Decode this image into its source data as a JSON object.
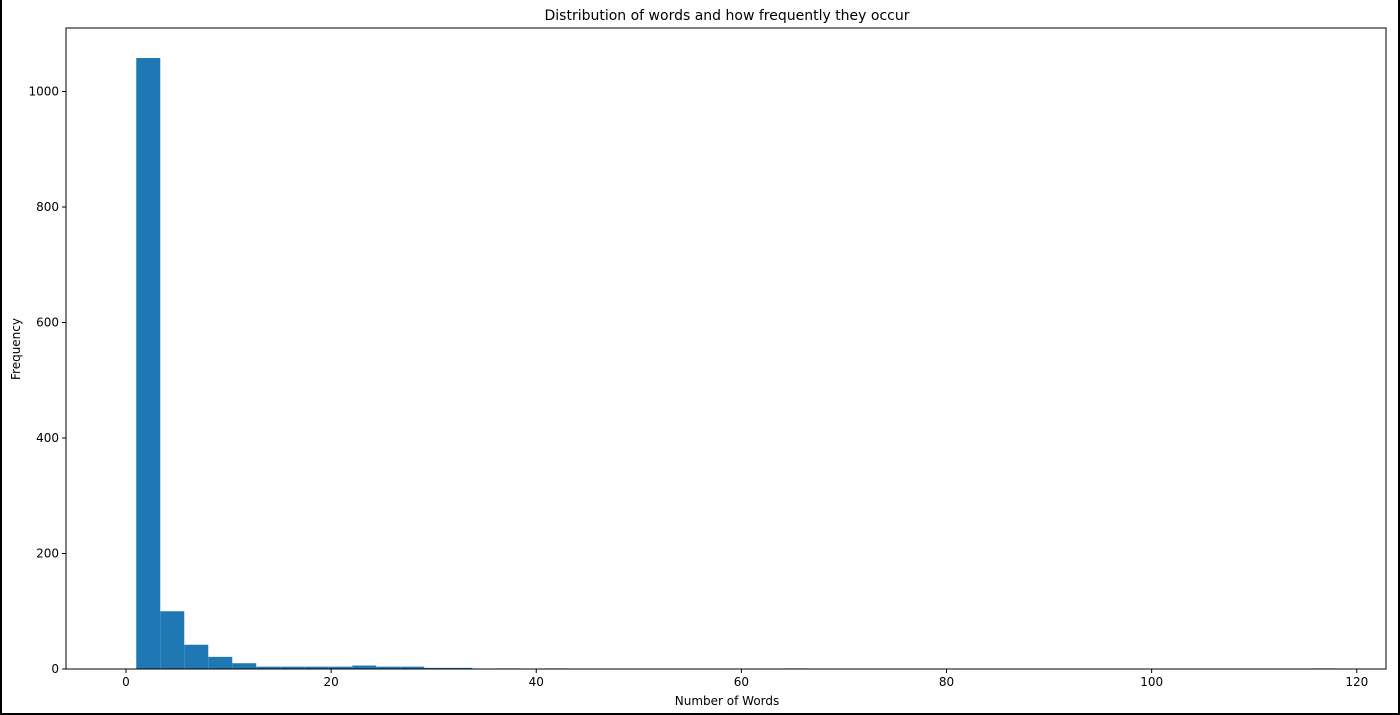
{
  "chart_data": {
    "type": "bar",
    "title": "Distribution of words and how frequently they occur",
    "xlabel": "Number of Words",
    "ylabel": "Frequency",
    "xlim": [
      -5.85,
      122.85
    ],
    "ylim": [
      0,
      1110
    ],
    "xticks": [
      0,
      20,
      40,
      60,
      80,
      100,
      120
    ],
    "yticks": [
      0,
      200,
      400,
      600,
      800,
      1000
    ],
    "bin_start": 1,
    "bin_width": 2.34,
    "values": [
      1058,
      100,
      42,
      21,
      10,
      4,
      4,
      4,
      4,
      6,
      4,
      4,
      2,
      2,
      0,
      1,
      0,
      1,
      0,
      0,
      0,
      0,
      0,
      0,
      0,
      0,
      0,
      1,
      0,
      0,
      0,
      0,
      0,
      0,
      0,
      0,
      0,
      0,
      0,
      0,
      0,
      0,
      0,
      0,
      0,
      0,
      0,
      0,
      0,
      1
    ],
    "bar_color": "#1f77b4",
    "grid": false
  }
}
